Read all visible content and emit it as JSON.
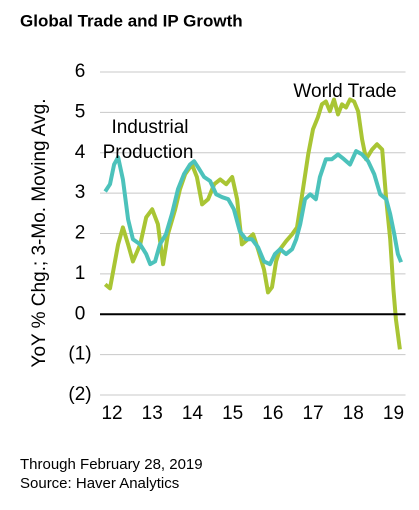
{
  "chart_data": {
    "type": "line",
    "title": "Global Trade and IP Growth",
    "ylabel": "YoY % Chg.; 3-Mo. Moving Avg.",
    "footnotes": [
      "Through February 28, 2019",
      "Source: Haver Analytics"
    ],
    "xlim": [
      2011.8,
      2019.25
    ],
    "ylim": [
      -2,
      6
    ],
    "xticks": [
      {
        "value": 2012,
        "label": "12"
      },
      {
        "value": 2013,
        "label": "13"
      },
      {
        "value": 2014,
        "label": "14"
      },
      {
        "value": 2015,
        "label": "15"
      },
      {
        "value": 2016,
        "label": "16"
      },
      {
        "value": 2017,
        "label": "17"
      },
      {
        "value": 2018,
        "label": "18"
      },
      {
        "value": 2019,
        "label": "19"
      }
    ],
    "yticks": [
      6,
      5,
      4,
      3,
      2,
      1,
      0,
      {
        "value": -1,
        "label": "(1)"
      },
      {
        "value": -2,
        "label": "(2)"
      }
    ],
    "grid": true,
    "series": [
      {
        "name": "World Trade",
        "color": "#a9c534",
        "x": [
          2011.83,
          2011.95,
          2012.15,
          2012.27,
          2012.4,
          2012.52,
          2012.7,
          2012.85,
          2013.0,
          2013.14,
          2013.27,
          2013.39,
          2013.57,
          2013.69,
          2013.82,
          2013.99,
          2014.11,
          2014.24,
          2014.39,
          2014.54,
          2014.69,
          2014.84,
          2014.99,
          2015.11,
          2015.23,
          2015.38,
          2015.51,
          2015.63,
          2015.78,
          2015.88,
          2015.98,
          2016.08,
          2016.18,
          2016.33,
          2016.48,
          2016.6,
          2016.73,
          2016.88,
          2017.0,
          2017.12,
          2017.22,
          2017.32,
          2017.42,
          2017.52,
          2017.62,
          2017.72,
          2017.82,
          2017.92,
          2018.02,
          2018.12,
          2018.22,
          2018.32,
          2018.47,
          2018.59,
          2018.72,
          2018.82,
          2018.92,
          2019.0,
          2019.06,
          2019.16
        ],
        "values": [
          0.74,
          0.64,
          1.73,
          2.15,
          1.73,
          1.31,
          1.73,
          2.4,
          2.6,
          2.23,
          1.24,
          1.98,
          2.6,
          3.1,
          3.47,
          3.71,
          3.4,
          2.72,
          2.85,
          3.22,
          3.34,
          3.22,
          3.4,
          2.85,
          1.73,
          1.86,
          1.98,
          1.61,
          1.11,
          0.54,
          0.67,
          1.31,
          1.61,
          1.81,
          1.98,
          2.15,
          2.97,
          3.96,
          4.58,
          4.88,
          5.2,
          5.27,
          5.03,
          5.32,
          4.95,
          5.2,
          5.12,
          5.32,
          5.27,
          5.03,
          4.33,
          3.84,
          4.08,
          4.21,
          4.08,
          2.85,
          1.86,
          0.62,
          -0.12,
          -0.87
        ]
      },
      {
        "name": "Industrial Production",
        "color": "#4cc2bb",
        "x": [
          2011.83,
          2011.95,
          2012.05,
          2012.15,
          2012.27,
          2012.4,
          2012.52,
          2012.7,
          2012.85,
          2012.95,
          2013.07,
          2013.19,
          2013.34,
          2013.49,
          2013.64,
          2013.79,
          2013.94,
          2014.04,
          2014.14,
          2014.29,
          2014.44,
          2014.59,
          2014.74,
          2014.89,
          2015.03,
          2015.18,
          2015.33,
          2015.48,
          2015.63,
          2015.78,
          2015.93,
          2016.05,
          2016.18,
          2016.33,
          2016.48,
          2016.58,
          2016.68,
          2016.8,
          2016.93,
          2017.07,
          2017.17,
          2017.32,
          2017.47,
          2017.62,
          2017.77,
          2017.92,
          2018.07,
          2018.22,
          2018.37,
          2018.52,
          2018.67,
          2018.82,
          2018.92,
          2019.02,
          2019.11,
          2019.19
        ],
        "values": [
          3.04,
          3.22,
          3.71,
          3.89,
          3.34,
          2.35,
          1.86,
          1.73,
          1.49,
          1.24,
          1.31,
          1.73,
          1.98,
          2.48,
          3.1,
          3.47,
          3.71,
          3.79,
          3.64,
          3.4,
          3.3,
          2.97,
          2.9,
          2.85,
          2.6,
          2.05,
          1.86,
          1.86,
          1.66,
          1.31,
          1.24,
          1.49,
          1.61,
          1.49,
          1.61,
          1.86,
          2.23,
          2.85,
          2.97,
          2.85,
          3.4,
          3.84,
          3.84,
          3.96,
          3.84,
          3.71,
          4.04,
          3.96,
          3.79,
          3.47,
          2.97,
          2.85,
          2.48,
          1.98,
          1.49,
          1.29
        ]
      }
    ]
  }
}
